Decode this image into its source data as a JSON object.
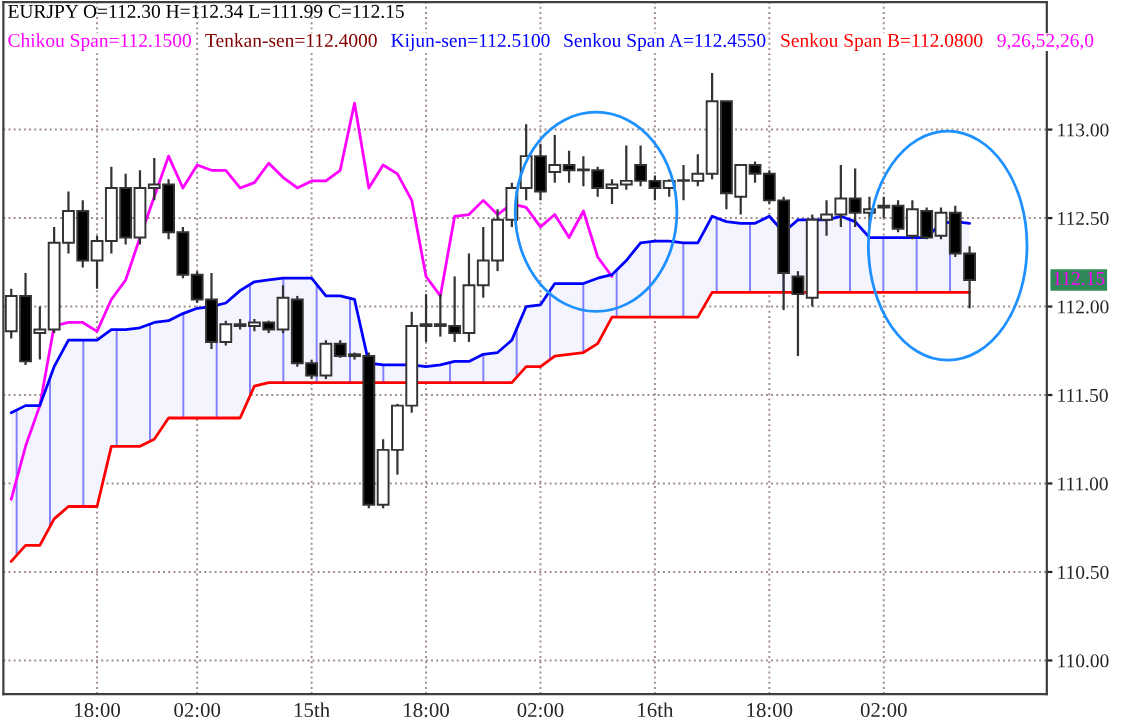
{
  "chart_data": {
    "type": "candlestick",
    "title": "EURJPY O=112.30 H=112.34 L=111.99 C=112.15",
    "categories": [
      null,
      null,
      null,
      null,
      null,
      null,
      "18:00",
      null,
      null,
      null,
      null,
      null,
      null,
      "02:00",
      null,
      null,
      null,
      null,
      null,
      null,
      null,
      "15th",
      null,
      null,
      null,
      null,
      null,
      null,
      null,
      "18:00",
      null,
      null,
      null,
      null,
      null,
      null,
      null,
      "02:00",
      null,
      null,
      null,
      null,
      null,
      null,
      null,
      "16th",
      null,
      null,
      null,
      null,
      null,
      null,
      null,
      "18:00",
      null,
      null,
      null,
      null,
      null,
      null,
      null,
      "02:00",
      null,
      null,
      null,
      null,
      null,
      null
    ],
    "ohlc": [
      [
        111.86,
        112.1,
        111.82,
        112.06
      ],
      [
        112.06,
        112.19,
        111.67,
        111.69
      ],
      [
        111.85,
        112.0,
        111.7,
        111.87
      ],
      [
        111.87,
        112.45,
        111.85,
        112.36
      ],
      [
        112.36,
        112.65,
        112.3,
        112.54
      ],
      [
        112.54,
        112.6,
        112.22,
        112.26
      ],
      [
        112.26,
        112.4,
        112.1,
        112.37
      ],
      [
        112.37,
        112.79,
        112.3,
        112.67
      ],
      [
        112.67,
        112.75,
        112.35,
        112.39
      ],
      [
        112.39,
        112.77,
        112.35,
        112.67
      ],
      [
        112.67,
        112.84,
        112.6,
        112.69
      ],
      [
        112.69,
        112.72,
        112.38,
        112.42
      ],
      [
        112.42,
        112.45,
        112.16,
        112.18
      ],
      [
        112.18,
        112.2,
        112.02,
        112.04
      ],
      [
        112.04,
        112.19,
        111.76,
        111.8
      ],
      [
        111.8,
        111.92,
        111.78,
        111.9
      ],
      [
        111.9,
        111.93,
        111.87,
        111.89
      ],
      [
        111.89,
        111.93,
        111.86,
        111.91
      ],
      [
        111.91,
        111.92,
        111.85,
        111.87
      ],
      [
        111.87,
        112.12,
        111.85,
        112.05
      ],
      [
        112.04,
        112.06,
        111.66,
        111.68
      ],
      [
        111.68,
        111.7,
        111.59,
        111.61
      ],
      [
        111.61,
        111.81,
        111.59,
        111.79
      ],
      [
        111.79,
        111.81,
        111.71,
        111.72
      ],
      [
        111.72,
        111.74,
        111.7,
        111.73
      ],
      [
        111.72,
        111.74,
        110.86,
        110.88
      ],
      [
        110.88,
        111.25,
        110.86,
        111.19
      ],
      [
        111.19,
        111.45,
        111.05,
        111.44
      ],
      [
        111.44,
        111.97,
        111.4,
        111.89
      ],
      [
        111.89,
        112.07,
        111.8,
        111.9
      ],
      [
        111.9,
        112.07,
        111.83,
        111.89
      ],
      [
        111.89,
        112.17,
        111.8,
        111.85
      ],
      [
        111.85,
        112.3,
        111.8,
        112.12
      ],
      [
        112.12,
        112.45,
        112.05,
        112.26
      ],
      [
        112.26,
        112.55,
        112.2,
        112.49
      ],
      [
        112.49,
        112.7,
        112.45,
        112.67
      ],
      [
        112.67,
        113.03,
        112.6,
        112.85
      ],
      [
        112.85,
        112.92,
        112.6,
        112.65
      ],
      [
        112.76,
        112.97,
        112.7,
        112.8
      ],
      [
        112.8,
        112.88,
        112.7,
        112.77
      ],
      [
        112.77,
        112.85,
        112.68,
        112.77
      ],
      [
        112.77,
        112.79,
        112.62,
        112.67
      ],
      [
        112.67,
        112.72,
        112.58,
        112.69
      ],
      [
        112.69,
        112.91,
        112.66,
        112.71
      ],
      [
        112.8,
        112.91,
        112.68,
        112.71
      ],
      [
        112.71,
        112.74,
        112.6,
        112.67
      ],
      [
        112.67,
        112.72,
        112.62,
        112.71
      ],
      [
        112.71,
        112.8,
        112.6,
        112.71
      ],
      [
        112.71,
        112.86,
        112.68,
        112.75
      ],
      [
        112.75,
        113.32,
        112.72,
        113.16
      ],
      [
        113.16,
        113.16,
        112.55,
        112.64
      ],
      [
        112.62,
        112.8,
        112.52,
        112.8
      ],
      [
        112.8,
        112.82,
        112.7,
        112.75
      ],
      [
        112.75,
        112.77,
        112.58,
        112.6
      ],
      [
        112.6,
        112.62,
        111.98,
        112.19
      ],
      [
        112.17,
        112.2,
        111.72,
        112.07
      ],
      [
        112.05,
        112.52,
        112.0,
        112.49
      ],
      [
        112.49,
        112.6,
        112.4,
        112.52
      ],
      [
        112.52,
        112.8,
        112.45,
        112.61
      ],
      [
        112.61,
        112.78,
        112.45,
        112.53
      ],
      [
        112.53,
        112.62,
        112.45,
        112.55
      ],
      [
        112.57,
        112.62,
        112.5,
        112.56
      ],
      [
        112.57,
        112.6,
        112.42,
        112.44
      ],
      [
        112.4,
        112.6,
        112.38,
        112.55
      ],
      [
        112.54,
        112.56,
        112.38,
        112.39
      ],
      [
        112.4,
        112.56,
        112.38,
        112.53
      ],
      [
        112.53,
        112.57,
        112.28,
        112.3
      ],
      [
        112.3,
        112.34,
        111.99,
        112.15
      ]
    ],
    "series": [
      {
        "type": "line",
        "name": "Chikou Span=112.1500",
        "color": "#ff00ff",
        "values": [
          110.91,
          111.21,
          111.44,
          111.89,
          111.91,
          111.91,
          111.86,
          112.04,
          112.15,
          112.39,
          112.62,
          112.85,
          112.67,
          112.8,
          112.77,
          112.77,
          112.67,
          112.7,
          112.81,
          112.73,
          112.67,
          112.71,
          112.71,
          112.77,
          113.15,
          112.67,
          112.8,
          112.75,
          112.6,
          112.17,
          112.06,
          112.51,
          112.52,
          112.6,
          112.52,
          112.58,
          112.56,
          112.45,
          112.52,
          112.39,
          112.54,
          112.28,
          112.17,
          null,
          null,
          null,
          null,
          null,
          null,
          null,
          null,
          null,
          null,
          null,
          null,
          null,
          null,
          null,
          null,
          null,
          null,
          null,
          null,
          null,
          null,
          null,
          null,
          null
        ]
      },
      {
        "type": "line",
        "name": "Tenkan-sen=112.4000",
        "color": "#800000",
        "values": [
          null,
          null,
          null,
          null,
          null,
          null,
          null,
          null,
          null,
          null,
          null,
          null,
          null,
          null,
          null,
          null,
          null,
          null,
          null,
          null,
          null,
          null,
          null,
          null,
          null,
          null,
          null,
          null,
          null,
          null,
          null,
          null,
          null,
          null,
          null,
          null,
          null,
          null,
          null,
          null,
          null,
          null,
          null,
          null,
          null,
          null,
          null,
          null,
          null,
          null,
          null,
          null,
          null,
          null,
          null,
          null,
          null,
          null,
          null,
          null,
          null,
          null,
          null,
          null,
          null,
          null,
          null,
          null
        ]
      },
      {
        "type": "line",
        "name": "Kijun-sen=112.5100",
        "color": "#0000ff",
        "values": [
          null,
          null,
          null,
          null,
          null,
          null,
          null,
          null,
          null,
          null,
          null,
          null,
          null,
          null,
          null,
          null,
          null,
          null,
          null,
          null,
          null,
          null,
          null,
          null,
          null,
          null,
          null,
          null,
          null,
          null,
          null,
          null,
          null,
          null,
          null,
          null,
          null,
          null,
          null,
          null,
          null,
          null,
          null,
          null,
          null,
          null,
          null,
          null,
          null,
          null,
          null,
          null,
          null,
          null,
          null,
          null,
          null,
          null,
          null,
          null,
          null,
          null,
          null,
          null,
          null,
          null,
          null,
          null
        ]
      },
      {
        "type": "line",
        "name": "Senkou Span A=112.4550",
        "color": "#0000ff",
        "values": [
          111.4,
          111.44,
          111.44,
          111.66,
          111.81,
          111.81,
          111.81,
          111.87,
          111.87,
          111.88,
          111.91,
          111.92,
          111.96,
          111.99,
          112.0,
          112.02,
          112.09,
          112.14,
          112.15,
          112.16,
          112.16,
          112.16,
          112.06,
          112.06,
          112.04,
          111.68,
          111.67,
          111.67,
          111.67,
          111.66,
          111.67,
          111.69,
          111.69,
          111.73,
          111.74,
          111.81,
          112.0,
          112.01,
          112.13,
          112.13,
          112.13,
          112.16,
          112.18,
          112.26,
          112.36,
          112.37,
          112.37,
          112.36,
          112.36,
          112.51,
          112.48,
          112.47,
          112.47,
          112.51,
          112.42,
          112.49,
          112.49,
          112.49,
          112.51,
          112.48,
          112.39,
          112.39,
          112.39,
          112.39,
          112.39,
          112.47,
          112.48,
          112.47
        ],
        "lower": [
          110.56,
          110.65,
          110.65,
          110.8,
          110.87,
          110.87,
          110.87,
          111.21,
          111.21,
          111.21,
          111.25,
          111.37,
          111.37,
          111.37,
          111.37,
          111.37,
          111.37,
          111.55,
          111.57,
          111.57,
          111.57,
          111.57,
          111.57,
          111.57,
          111.57,
          111.57,
          111.57,
          111.57,
          111.57,
          111.57,
          111.57,
          111.57,
          111.57,
          111.57,
          111.57,
          111.57,
          111.66,
          111.66,
          111.72,
          111.73,
          111.74,
          111.79,
          111.94,
          111.94,
          111.94,
          111.94,
          111.94,
          111.94,
          111.94,
          112.08,
          112.08,
          112.08,
          112.08,
          112.08,
          112.08,
          112.08,
          112.08,
          112.08,
          112.08,
          112.08,
          112.08,
          112.08,
          112.08,
          112.08,
          112.08,
          112.08,
          112.08,
          112.08
        ],
        "upper": [
          111.4,
          111.44,
          111.44,
          111.66,
          111.81,
          111.81,
          111.81,
          111.87,
          111.87,
          111.88,
          111.91,
          111.92,
          111.96,
          111.99,
          112.0,
          112.02,
          112.09,
          112.14,
          112.15,
          112.16,
          112.16,
          112.16,
          112.06,
          112.06,
          112.04,
          111.68,
          111.67,
          111.67,
          111.67,
          111.66,
          111.67,
          111.69,
          111.69,
          111.73,
          111.74,
          111.81,
          112.0,
          112.01,
          112.13,
          112.13,
          112.13,
          112.16,
          112.18,
          112.26,
          112.36,
          112.37,
          112.37,
          112.36,
          112.36,
          112.51,
          112.48,
          112.47,
          112.47,
          112.51,
          112.42,
          112.49,
          112.49,
          112.49,
          112.51,
          112.48,
          112.39,
          112.39,
          112.39,
          112.39,
          112.39,
          112.47,
          112.48,
          112.47
        ]
      },
      {
        "type": "line",
        "name": "Senkou Span B=112.0800",
        "color": "#ff0000",
        "values": [
          110.56,
          110.65,
          110.65,
          110.8,
          110.87,
          110.87,
          110.87,
          111.21,
          111.21,
          111.21,
          111.25,
          111.37,
          111.37,
          111.37,
          111.37,
          111.37,
          111.37,
          111.55,
          111.57,
          111.57,
          111.57,
          111.57,
          111.57,
          111.57,
          111.57,
          111.57,
          111.57,
          111.57,
          111.57,
          111.57,
          111.57,
          111.57,
          111.57,
          111.57,
          111.57,
          111.57,
          111.66,
          111.66,
          111.72,
          111.73,
          111.74,
          111.79,
          111.94,
          111.94,
          111.94,
          111.94,
          111.94,
          111.94,
          111.94,
          112.08,
          112.08,
          112.08,
          112.08,
          112.08,
          112.08,
          112.08,
          112.08,
          112.08,
          112.08,
          112.08,
          112.08,
          112.08,
          112.08,
          112.08,
          112.08,
          112.08,
          112.08,
          112.08
        ]
      }
    ],
    "annotations": [
      "9,26,52,26,0",
      "112.15"
    ],
    "ylim": [
      109.81,
      113.72
    ],
    "yticks": [
      {
        "value": 110,
        "label": "110.00"
      },
      {
        "value": 110.5,
        "label": "110.50"
      },
      {
        "value": 111,
        "label": "111.00"
      },
      {
        "value": 111.5,
        "label": "111.50"
      },
      {
        "value": 112,
        "label": "112.00"
      },
      {
        "value": 112.5,
        "label": "112.50"
      },
      {
        "value": 113,
        "label": "113.00"
      }
    ],
    "grid": true,
    "legend": "top left"
  }
}
